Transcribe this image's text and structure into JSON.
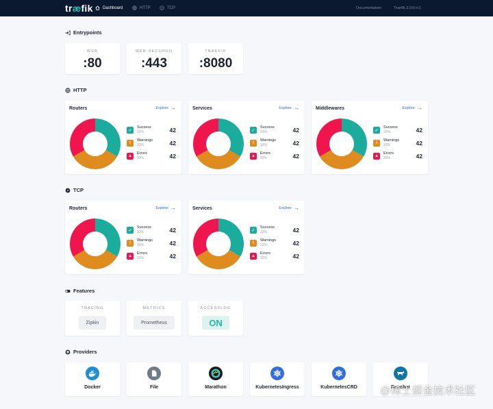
{
  "topbar": {
    "logo_pre": "tr",
    "logo_accent": "æ",
    "logo_post": "fik",
    "nav": [
      {
        "label": "Dashboard"
      },
      {
        "label": "HTTP"
      },
      {
        "label": "TCP"
      }
    ],
    "documentation": "Documentation",
    "version": "Traefik 2.0.0-rc1"
  },
  "entrypoints": {
    "title": "Entrypoints",
    "items": [
      {
        "label": "WEB",
        "value": ":80"
      },
      {
        "label": "WEB-SECURED",
        "value": ":443"
      },
      {
        "label": "TRAEFIK",
        "value": ":8080"
      }
    ]
  },
  "http": {
    "title": "HTTP",
    "cards": [
      {
        "title": "Routers",
        "explore": "Explore"
      },
      {
        "title": "Services",
        "explore": "Explore"
      },
      {
        "title": "Middlewares",
        "explore": "Explore"
      }
    ]
  },
  "tcp": {
    "title": "TCP",
    "cards": [
      {
        "title": "Routers",
        "explore": "Explore"
      },
      {
        "title": "Services",
        "explore": "Explore"
      }
    ]
  },
  "stats": {
    "success": {
      "label": "Success",
      "pct": "33%",
      "count": "42"
    },
    "warnings": {
      "label": "Warnings",
      "pct": "33%",
      "count": "42"
    },
    "errors": {
      "label": "Errors",
      "pct": "33%",
      "count": "42"
    }
  },
  "donut_fractions": {
    "success": 0.3333,
    "warnings": 0.3333,
    "errors": 0.3334
  },
  "colors": {
    "success": "#1aac9c",
    "warnings": "#df8b1e",
    "errors": "#f0154d",
    "topbar": "#0b1930",
    "accent": "#24c1b0"
  },
  "features": {
    "title": "Features",
    "items": [
      {
        "label": "TRACING",
        "value": "Zipkin"
      },
      {
        "label": "METRICS",
        "value": "Prometheus"
      },
      {
        "label": "ACCESSLOG",
        "value": "ON"
      }
    ]
  },
  "providers": {
    "title": "Providers",
    "items": [
      {
        "name": "Docker",
        "icon": "docker-icon"
      },
      {
        "name": "File",
        "icon": "file-icon"
      },
      {
        "name": "Marathon",
        "icon": "marathon-icon"
      },
      {
        "name": "KubernetesIngress",
        "icon": "kubernetes-icon"
      },
      {
        "name": "KubernetesCRD",
        "icon": "kubernetes-icon"
      },
      {
        "name": "Rancher",
        "icon": "rancher-icon"
      }
    ]
  },
  "watermark": "@稀土掘金技术社区"
}
